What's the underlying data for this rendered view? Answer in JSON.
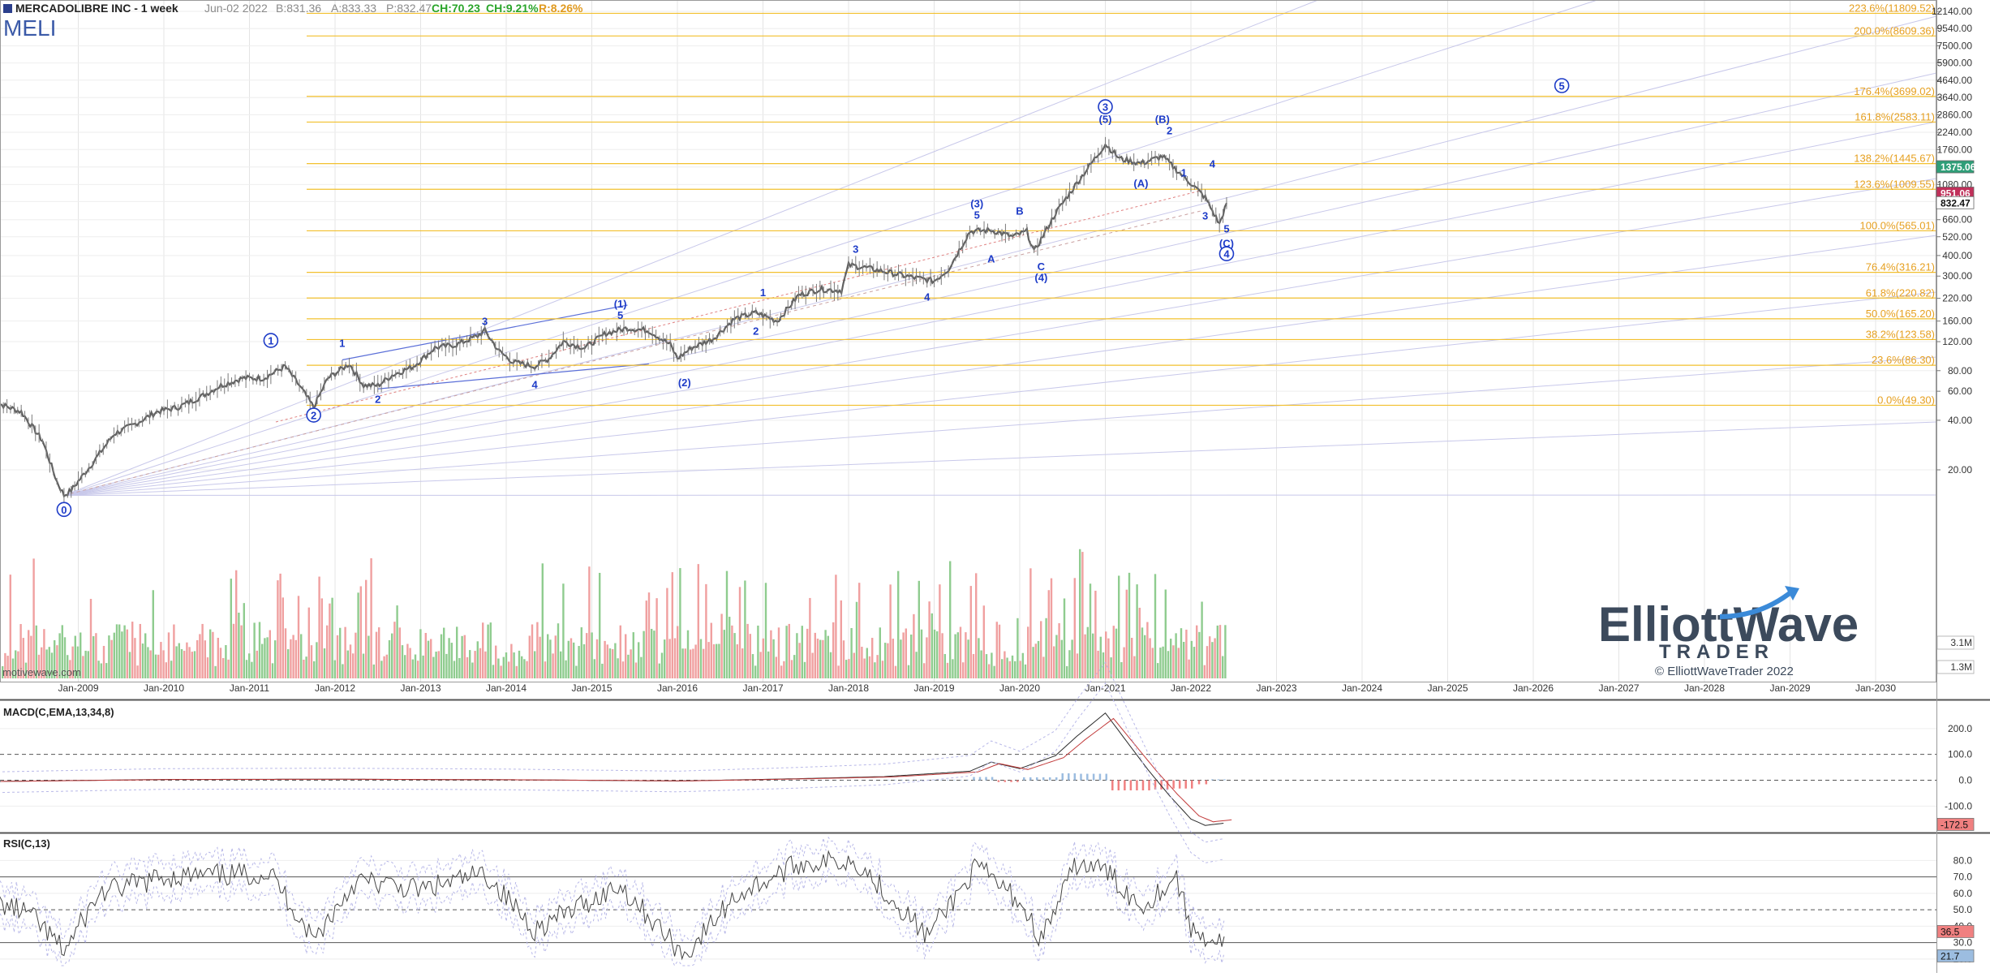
{
  "header": {
    "company": "MERCADOLIBRE INC - 1 week",
    "ticker": "MELI",
    "date": "Jun-02 2022",
    "bid": "B:831.36",
    "ask": "A:833.33",
    "price": "P:832.47",
    "change": "CH:70.23",
    "change_pct": "CH:9.21%",
    "range": "R:8.26%"
  },
  "colors": {
    "price_line": "#606060",
    "fib": "#f2c02e",
    "fib_text": "#e6a020",
    "wave": "#1e3cc8",
    "volume_up": "#8fcc8f",
    "volume_down": "#f0a0a0",
    "grid": "#e4e4e4",
    "macd_hist_pos": "#9cbde0",
    "macd_hist_neg": "#f08080"
  },
  "watermark": {
    "brand_line1": "ElliottWave",
    "brand_line2": "TRADER",
    "copyright": "© ElliottWaveTrader 2022",
    "source": "motivewave.com"
  },
  "chart_data": [
    {
      "type": "line",
      "title": "MERCADOLIBRE INC - 1 week",
      "scale": "log",
      "ylim": [
        11,
        13500
      ],
      "xlim": [
        "2008-01",
        "2030-10"
      ],
      "x_ticks": [
        "Jan-2009",
        "Jan-2010",
        "Jan-2011",
        "Jan-2012",
        "Jan-2013",
        "Jan-2014",
        "Jan-2015",
        "Jan-2016",
        "Jan-2017",
        "Jan-2018",
        "Jan-2019",
        "Jan-2020",
        "Jan-2021",
        "Jan-2022",
        "Jan-2023",
        "Jan-2024",
        "Jan-2025",
        "Jan-2026",
        "Jan-2027",
        "Jan-2028",
        "Jan-2029",
        "Jan-2030"
      ],
      "y_ticks": [
        "12140.00",
        "9540.00",
        "7500.00",
        "5900.00",
        "4640.00",
        "3640.00",
        "2860.00",
        "2240.00",
        "1760.00",
        "1380.00",
        "1080.00",
        "850.00",
        "660.00",
        "520.00",
        "400.00",
        "300.00",
        "220.00",
        "160.00",
        "120.00",
        "80.00",
        "60.00",
        "40.00",
        "20.00"
      ],
      "price_tags": [
        {
          "label": "1375.06",
          "value": 1375.06,
          "bg": "#2f9e78"
        },
        {
          "label": "951.06",
          "value": 951.06,
          "bg": "#c0305a"
        },
        {
          "label": "832.47",
          "value": 832.47,
          "bg": "#ffffff"
        }
      ],
      "series": [
        {
          "name": "",
          "x": [
            "2008-01",
            "2008-05",
            "2008-08",
            "2008-10",
            "2008-11",
            "2008-12",
            "2009-03",
            "2009-06",
            "2009-09",
            "2009-12",
            "2010-03",
            "2010-06",
            "2010-09",
            "2010-12",
            "2011-03",
            "2011-06",
            "2011-08",
            "2011-10",
            "2011-12",
            "2012-03",
            "2012-05",
            "2012-07",
            "2012-09",
            "2012-12",
            "2013-03",
            "2013-06",
            "2013-09",
            "2013-10",
            "2013-12",
            "2014-02",
            "2014-05",
            "2014-07",
            "2014-09",
            "2014-12",
            "2015-03",
            "2015-06",
            "2015-09",
            "2015-12",
            "2016-01",
            "2016-03",
            "2016-06",
            "2016-09",
            "2016-12",
            "2017-03",
            "2017-06",
            "2017-09",
            "2017-12",
            "2018-01",
            "2018-03",
            "2018-06",
            "2018-09",
            "2018-12",
            "2019-01",
            "2019-03",
            "2019-06",
            "2019-09",
            "2019-12",
            "2020-02",
            "2020-03",
            "2020-06",
            "2020-09",
            "2020-12",
            "2021-01",
            "2021-03",
            "2021-06",
            "2021-09",
            "2021-12",
            "2022-01",
            "2022-03",
            "2022-05",
            "2022-06"
          ],
          "values": [
            52,
            45,
            30,
            17,
            14,
            15,
            22,
            33,
            38,
            45,
            48,
            55,
            65,
            72,
            72,
            85,
            65,
            48,
            72,
            88,
            65,
            65,
            75,
            85,
            110,
            115,
            130,
            140,
            105,
            90,
            85,
            95,
            120,
            110,
            135,
            145,
            140,
            115,
            95,
            110,
            125,
            165,
            180,
            160,
            230,
            250,
            245,
            350,
            340,
            320,
            300,
            285,
            280,
            330,
            560,
            570,
            520,
            560,
            420,
            720,
            1100,
            1650,
            1900,
            1550,
            1450,
            1600,
            1200,
            1100,
            900,
            620,
            832
          ]
        }
      ],
      "fib_levels": [
        {
          "label": "223.6%(11809.52)",
          "value": 11809.52
        },
        {
          "label": "200.0%(8609.36)",
          "value": 8609.36
        },
        {
          "label": "176.4%(3699.02)",
          "value": 3699.02
        },
        {
          "label": "161.8%(2583.11)",
          "value": 2583.11
        },
        {
          "label": "138.2%(1445.67)",
          "value": 1445.67
        },
        {
          "label": "123.6%(1009.55)",
          "value": 1009.55
        },
        {
          "label": "100.0%(565.01)",
          "value": 565.01
        },
        {
          "label": "76.4%(316.21)",
          "value": 316.21
        },
        {
          "label": "61.8%(220.82)",
          "value": 220.82
        },
        {
          "label": "50.0%(165.20)",
          "value": 165.2
        },
        {
          "label": "38.2%(123.58)",
          "value": 123.58
        },
        {
          "label": "23.6%(86.30)",
          "value": 86.3
        },
        {
          "label": "0.0%(49.30)",
          "value": 49.3
        }
      ],
      "wave_labels": [
        {
          "label": "0",
          "x": "2008-11",
          "y": 11.5,
          "circled": true
        },
        {
          "label": "1",
          "x": "2011-04",
          "y": 122,
          "circled": true
        },
        {
          "label": "2",
          "x": "2011-10",
          "y": 43,
          "circled": true
        },
        {
          "label": "1",
          "x": "2012-02",
          "y": 118
        },
        {
          "label": "2",
          "x": "2012-07",
          "y": 54
        },
        {
          "label": "3",
          "x": "2013-10",
          "y": 160
        },
        {
          "label": "4",
          "x": "2014-05",
          "y": 66
        },
        {
          "label": "(1)",
          "x": "2015-05",
          "y": 205
        },
        {
          "label": "5",
          "x": "2015-05",
          "y": 175
        },
        {
          "label": "(2)",
          "x": "2016-02",
          "y": 68
        },
        {
          "label": "1",
          "x": "2017-01",
          "y": 240
        },
        {
          "label": "2",
          "x": "2016-12",
          "y": 140
        },
        {
          "label": "3",
          "x": "2018-02",
          "y": 440
        },
        {
          "label": "4",
          "x": "2018-12",
          "y": 225
        },
        {
          "label": "(3)",
          "x": "2019-07",
          "y": 830
        },
        {
          "label": "5",
          "x": "2019-07",
          "y": 710
        },
        {
          "label": "A",
          "x": "2019-09",
          "y": 385
        },
        {
          "label": "B",
          "x": "2020-01",
          "y": 750
        },
        {
          "label": "C",
          "x": "2020-04",
          "y": 345
        },
        {
          "label": "(4)",
          "x": "2020-04",
          "y": 295
        },
        {
          "label": "3",
          "x": "2021-01",
          "y": 3200,
          "circled": true
        },
        {
          "label": "(5)",
          "x": "2021-01",
          "y": 2700
        },
        {
          "label": "(B)",
          "x": "2021-09",
          "y": 2700
        },
        {
          "label": "2",
          "x": "2021-10",
          "y": 2300
        },
        {
          "label": "(A)",
          "x": "2021-06",
          "y": 1100
        },
        {
          "label": "1",
          "x": "2021-12",
          "y": 1280
        },
        {
          "label": "4",
          "x": "2022-04",
          "y": 1450
        },
        {
          "label": "3",
          "x": "2022-03",
          "y": 700
        },
        {
          "label": "5",
          "x": "2022-06",
          "y": 585
        },
        {
          "label": "(C)",
          "x": "2022-06",
          "y": 475
        },
        {
          "label": "4",
          "x": "2022-06",
          "y": 410,
          "circled": true
        },
        {
          "label": "5",
          "x": "2026-05",
          "y": 4300,
          "circled": true
        }
      ],
      "volume_labels": [
        "3.1M",
        "1.3M"
      ]
    },
    {
      "type": "line",
      "title": "MACD(C,EMA,13,34,8)",
      "ylim": [
        -190,
        300
      ],
      "y_ticks": [
        "200.0",
        "100.0",
        "0.0",
        "-100.0"
      ],
      "last_value_tag": {
        "label": "-172.5",
        "value": -172.5
      },
      "series": [
        {
          "name": "",
          "x": [
            "2008-01",
            "2010-01",
            "2012-01",
            "2014-01",
            "2016-01",
            "2017-06",
            "2018-06",
            "2019-06",
            "2019-09",
            "2020-01",
            "2020-06",
            "2020-09",
            "2021-01",
            "2021-04",
            "2021-07",
            "2021-10",
            "2022-01",
            "2022-03",
            "2022-06"
          ],
          "values": [
            -5,
            3,
            4,
            2,
            -3,
            6,
            14,
            35,
            70,
            45,
            95,
            170,
            260,
            150,
            40,
            -60,
            -150,
            -175,
            -165
          ]
        }
      ]
    },
    {
      "type": "line",
      "title": "RSI(C,13)",
      "ylim": [
        15,
        95
      ],
      "y_ticks": [
        "80.0",
        "70.0",
        "60.0",
        "50.0",
        "40.0",
        "30.0",
        "20.0"
      ],
      "last_value_tags": [
        {
          "label": "36.5",
          "value": 36.5
        },
        {
          "label": "21.7",
          "value": 21.7
        }
      ],
      "series": [
        {
          "name": "",
          "x": [
            "2008-01",
            "2008-06",
            "2008-11",
            "2009-04",
            "2010-01",
            "2011-04",
            "2011-10",
            "2012-04",
            "2013-01",
            "2013-10",
            "2014-05",
            "2015-05",
            "2016-02",
            "2016-09",
            "2017-06",
            "2018-02",
            "2018-09",
            "2018-12",
            "2019-07",
            "2020-01",
            "2020-04",
            "2020-09",
            "2021-01",
            "2021-06",
            "2021-11",
            "2022-01",
            "2022-05",
            "2022-06"
          ],
          "values": [
            55,
            48,
            25,
            60,
            70,
            72,
            32,
            68,
            62,
            72,
            38,
            65,
            22,
            58,
            78,
            80,
            48,
            34,
            76,
            55,
            32,
            78,
            74,
            52,
            70,
            38,
            30,
            36.5
          ]
        }
      ]
    }
  ]
}
